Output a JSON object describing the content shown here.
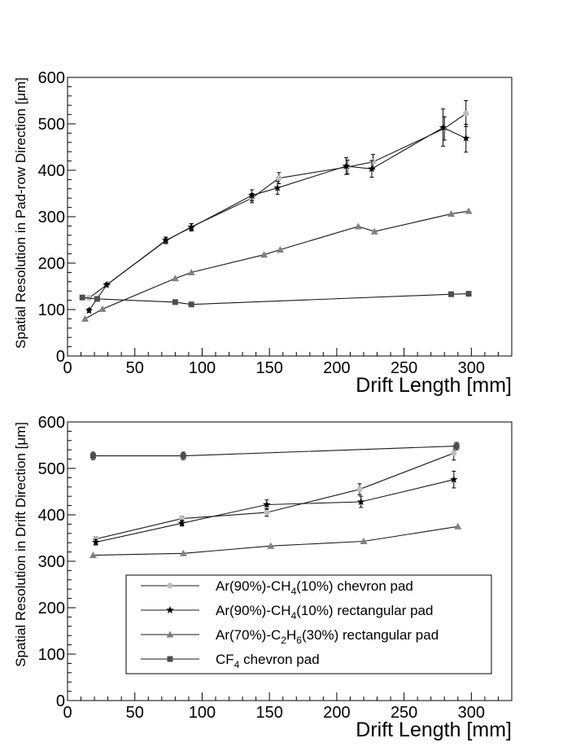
{
  "chart_data": [
    {
      "type": "line",
      "ylabel": "Spatial Resolution in Pad-row Direction [μm]",
      "xlabel": "Drift Length [mm]",
      "xlim": [
        0,
        330
      ],
      "ylim": [
        0,
        600
      ],
      "x_ticks": [
        "0",
        "50",
        "100",
        "150",
        "200",
        "250",
        "300"
      ],
      "y_ticks": [
        "0",
        "100",
        "200",
        "300",
        "400",
        "500",
        "600"
      ],
      "grid": false,
      "series": [
        {
          "name": "Ar(90%)-CH4(10%) chevron pad",
          "marker": "circle",
          "color": "#bdbdbd",
          "x": [
            16,
            30,
            73,
            92,
            137,
            157,
            208,
            227,
            280,
            296
          ],
          "y": [
            125,
            155,
            248,
            278,
            340,
            383,
            407,
            418,
            490,
            522
          ],
          "err": [
            4,
            4,
            6,
            7,
            10,
            12,
            15,
            16,
            25,
            28
          ]
        },
        {
          "name": "Ar(90%)-CH4(10%) rectangular pad",
          "marker": "star",
          "color": "#000000",
          "x": [
            16,
            29,
            73,
            92,
            137,
            156,
            207,
            226,
            279,
            296
          ],
          "y": [
            98,
            153,
            249,
            277,
            346,
            362,
            409,
            403,
            492,
            469
          ],
          "err": [
            4,
            4,
            7,
            8,
            12,
            14,
            18,
            18,
            40,
            30
          ]
        },
        {
          "name": "Ar(70%)-C2H6(30%) rectangular pad",
          "marker": "triangle",
          "color": "#808080",
          "x": [
            13,
            26,
            80,
            92,
            146,
            158,
            216,
            228,
            285,
            298
          ],
          "y": [
            80,
            101,
            167,
            180,
            218,
            229,
            279,
            268,
            306,
            312
          ],
          "err": [
            0,
            0,
            0,
            0,
            0,
            0,
            0,
            0,
            0,
            0
          ]
        },
        {
          "name": "CF4 chevron pad",
          "marker": "square",
          "color": "#4d4d4d",
          "x": [
            11,
            22,
            80,
            92,
            285,
            298
          ],
          "y": [
            126,
            123,
            116,
            111,
            133,
            134
          ],
          "err": [
            0,
            0,
            0,
            0,
            0,
            0
          ]
        }
      ]
    },
    {
      "type": "line",
      "ylabel": "Spatial Resolution in Drift Direction [μm]",
      "xlabel": "Drift Length [mm]",
      "xlim": [
        0,
        330
      ],
      "ylim": [
        0,
        600
      ],
      "x_ticks": [
        "0",
        "50",
        "100",
        "150",
        "200",
        "250",
        "300"
      ],
      "y_ticks": [
        "0",
        "100",
        "200",
        "300",
        "400",
        "500",
        "600"
      ],
      "grid": false,
      "legend_position": "bottom-center",
      "series": [
        {
          "name": "Ar(90%)-CH4(10%) chevron pad",
          "legend": {
            "pre": "Ar(90%)-CH",
            "sub1": "4",
            "mid": "(10%) chevron pad",
            "sub2": "",
            "post": ""
          },
          "marker": "circle",
          "color": "#bdbdbd",
          "x": [
            21,
            85,
            148,
            217,
            287
          ],
          "y": [
            348,
            392,
            405,
            455,
            533
          ],
          "err": [
            5,
            5,
            8,
            12,
            15
          ]
        },
        {
          "name": "Ar(90%)-CH4(10%) rectangular pad",
          "legend": {
            "pre": "Ar(90%)-CH",
            "sub1": "4",
            "mid": "(10%) rectangular pad",
            "sub2": "",
            "post": ""
          },
          "marker": "star",
          "color": "#000000",
          "x": [
            21,
            85,
            148,
            218,
            287
          ],
          "y": [
            341,
            382,
            422,
            428,
            476
          ],
          "err": [
            6,
            6,
            10,
            12,
            18
          ]
        },
        {
          "name": "Ar(70%)-C2H6(30%) rectangular pad",
          "legend": {
            "pre": "Ar(70%)-C",
            "sub1": "2",
            "mid": "H",
            "sub2": "6",
            "post": "(30%) rectangular pad"
          },
          "marker": "triangle",
          "color": "#808080",
          "x": [
            19,
            86,
            151,
            220,
            290
          ],
          "y": [
            313,
            317,
            333,
            343,
            375
          ],
          "err": [
            0,
            0,
            0,
            0,
            0
          ]
        },
        {
          "name": "CF4 chevron pad",
          "legend": {
            "pre": "CF",
            "sub1": "4",
            "mid": " chevron pad",
            "sub2": "",
            "post": ""
          },
          "marker": "square",
          "color": "#4d4d4d",
          "x": [
            19,
            86,
            289
          ],
          "y": [
            527,
            527,
            548
          ],
          "err": [
            8,
            8,
            8
          ]
        }
      ]
    }
  ]
}
